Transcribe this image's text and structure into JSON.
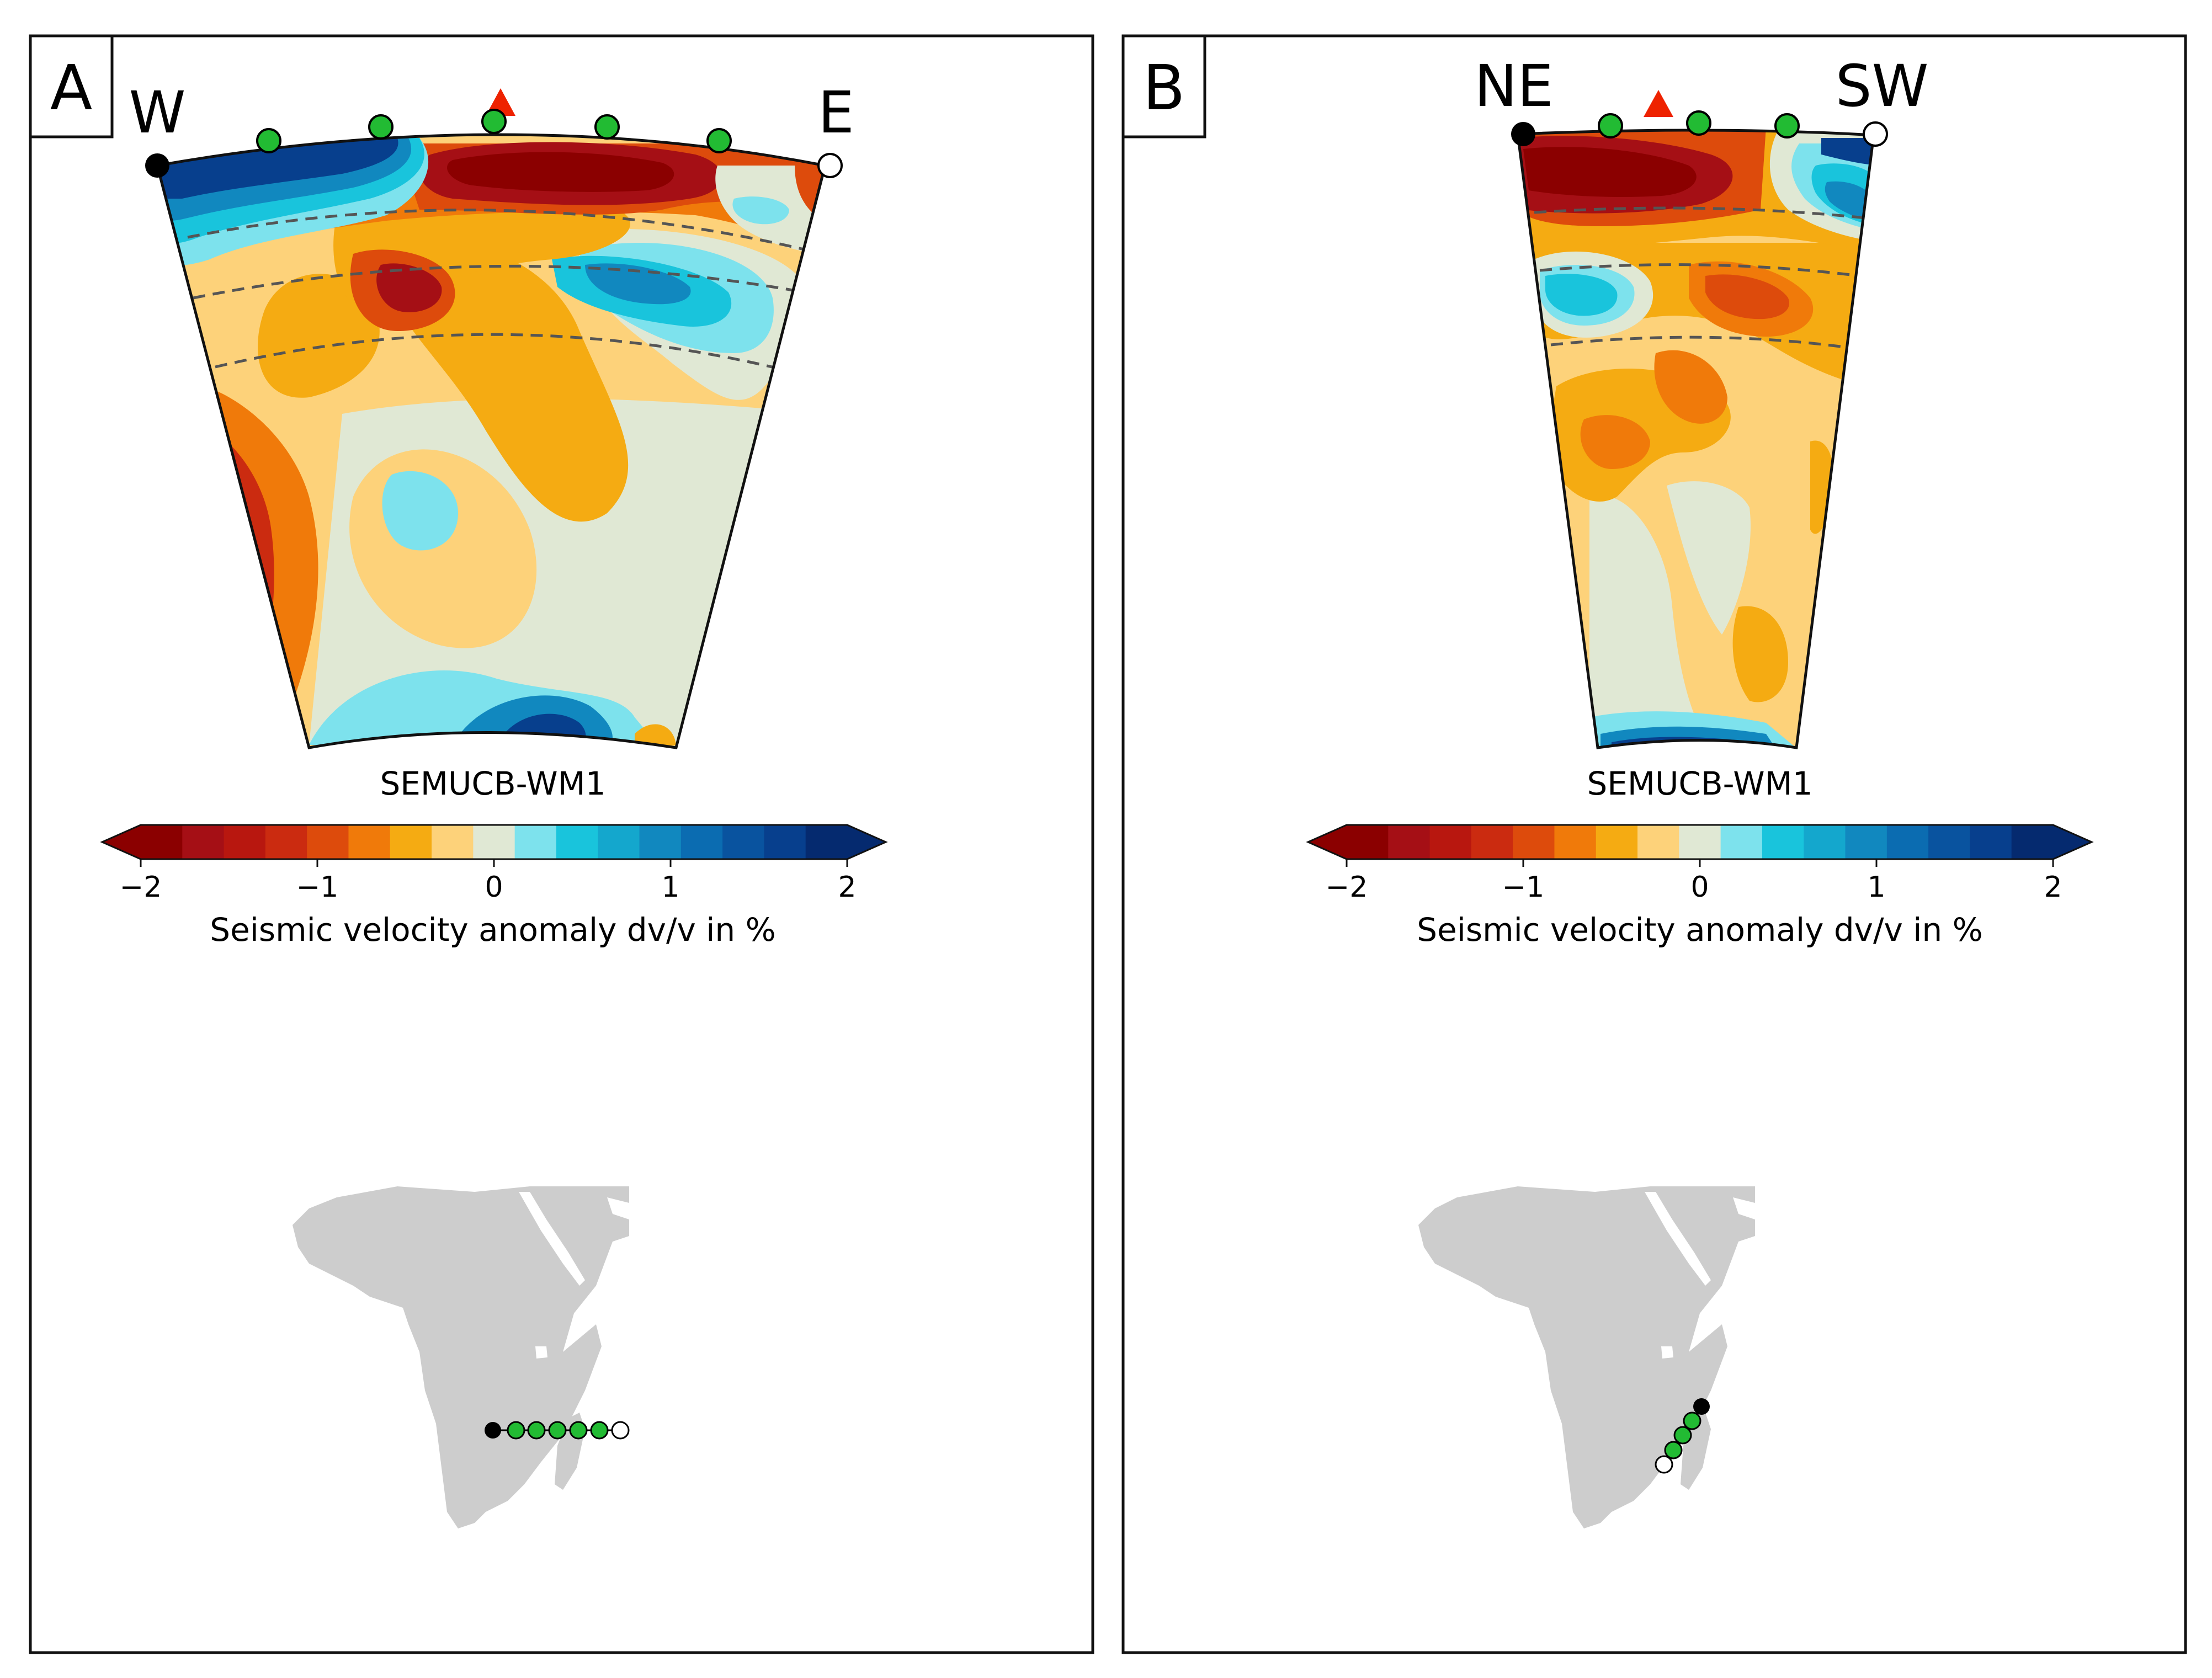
{
  "figure": {
    "panels": [
      {
        "label": "A",
        "left_end": "W",
        "right_end": "E",
        "model_name": "SEMUCB-WM1",
        "colorbar": {
          "ticks": [
            "−2",
            "−1",
            "0",
            "1",
            "2"
          ],
          "label": "Seismic velocity anomaly dv/v in %"
        }
      },
      {
        "label": "B",
        "left_end": "NE",
        "right_end": "SW",
        "model_name": "SEMUCB-WM1",
        "colorbar": {
          "ticks": [
            "−2",
            "−1",
            "0",
            "1",
            "2"
          ],
          "label": "Seismic velocity anomaly dv/v in %"
        }
      }
    ],
    "colorbar_range": [
      -2,
      2
    ],
    "colors": {
      "palette": [
        "#8b0000",
        "#a50f15",
        "#b8170f",
        "#cb2b10",
        "#dd4b0c",
        "#f07a0a",
        "#f5ab12",
        "#fdd27a",
        "#e0e8d4",
        "#7de2ed",
        "#19c4dc",
        "#14a7cd",
        "#1188bf",
        "#0b6cb1",
        "#09539f",
        "#073f8d",
        "#052a6f"
      ],
      "station": "#22bb33",
      "volcano": "#ee2200",
      "land": "#cdcdcd"
    }
  }
}
